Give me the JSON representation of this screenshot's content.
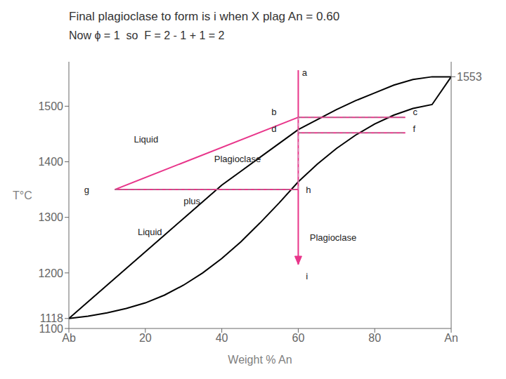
{
  "chart_data": {
    "type": "line",
    "title": "Final plagioclase to form is i when X plag An = 0.60",
    "subtitle": "Now ϕ = 1  so  F = 2 - 1 + 1 = 2",
    "xlabel": "Weight % An",
    "ylabel": "T°C",
    "xlim": [
      0,
      100
    ],
    "ylim": [
      1100,
      1580
    ],
    "xticks": [
      {
        "value": 0,
        "label": "Ab"
      },
      20,
      40,
      60,
      80,
      {
        "value": 100,
        "label": "An"
      }
    ],
    "yticks": [
      1100,
      1118,
      1200,
      1300,
      1400,
      1500
    ],
    "y2lim": [
      1100,
      1580
    ],
    "y2ticks": [
      1553
    ],
    "grid": false,
    "series": [
      {
        "x": [
          0,
          5,
          10,
          15,
          20,
          25,
          30,
          35,
          40,
          45,
          50,
          55,
          60,
          65,
          70,
          75,
          80,
          85,
          90,
          95,
          100
        ],
        "values": [
          1118,
          1148,
          1178,
          1208,
          1238,
          1268,
          1298,
          1328,
          1358,
          1383,
          1408,
          1433,
          1458,
          1476,
          1494,
          1510,
          1524,
          1538,
          1548,
          1553,
          1553
        ],
        "color": "#000000",
        "axis": "y2"
      },
      {
        "x": [
          0,
          5,
          10,
          15,
          20,
          25,
          30,
          35,
          40,
          45,
          50,
          55,
          60,
          65,
          70,
          75,
          80,
          85,
          90,
          95,
          100
        ],
        "values": [
          1118,
          1122,
          1128,
          1136,
          1146,
          1160,
          1178,
          1200,
          1226,
          1256,
          1290,
          1326,
          1364,
          1396,
          1424,
          1448,
          1468,
          1484,
          1496,
          1503,
          1553
        ],
        "color": "#000000"
      },
      {
        "x": [
          60,
          60
        ],
        "values": [
          1565,
          1215
        ],
        "color": "#e8358a",
        "marker": "arrow"
      },
      {
        "x": [
          12,
          60
        ],
        "values": [
          1350,
          1480
        ],
        "color": "#e8358a"
      },
      {
        "x": [
          12,
          60
        ],
        "values": [
          1350,
          1350
        ],
        "color": "#e8358a"
      },
      {
        "x": [
          60,
          88
        ],
        "values": [
          1480,
          1480
        ],
        "color": "#e8358a"
      },
      {
        "x": [
          60,
          88
        ],
        "values": [
          1452,
          1452
        ],
        "color": "#e8358a"
      },
      {
        "x": [
          60,
          88
        ],
        "values": [
          1480,
          1480
        ],
        "color": "#888888",
        "line_style": "dashed"
      },
      {
        "x": [
          60,
          88
        ],
        "values": [
          1452,
          1452
        ],
        "color": "#888888",
        "line_style": "dashed"
      },
      {
        "x": [
          12,
          60
        ],
        "values": [
          1350,
          1350
        ],
        "color": "#888888",
        "line_style": "dashed"
      },
      {
        "x": [
          60,
          60
        ],
        "values": [
          1350,
          1480
        ],
        "color": "#cc99bb",
        "line_style": "dashed"
      }
    ],
    "annotations": [
      {
        "text": "a",
        "x": 61,
        "y": 1555
      },
      {
        "text": "b",
        "x": 53,
        "y": 1484
      },
      {
        "text": "c",
        "x": 90,
        "y": 1484
      },
      {
        "text": "d",
        "x": 53,
        "y": 1454
      },
      {
        "text": "f",
        "x": 90,
        "y": 1454
      },
      {
        "text": "g",
        "x": 4,
        "y": 1344
      },
      {
        "text": "h",
        "x": 62,
        "y": 1344
      },
      {
        "text": "i",
        "x": 62,
        "y": 1189
      },
      {
        "text": "Liquid",
        "x": 17,
        "y": 1435
      },
      {
        "text": "Plagioclase",
        "x": 38,
        "y": 1400
      },
      {
        "text": "Liquid",
        "x": 18,
        "y": 1268
      },
      {
        "text": "plus",
        "x": 30,
        "y": 1323
      },
      {
        "text": "Plagioclase",
        "x": 63,
        "y": 1258
      }
    ]
  }
}
